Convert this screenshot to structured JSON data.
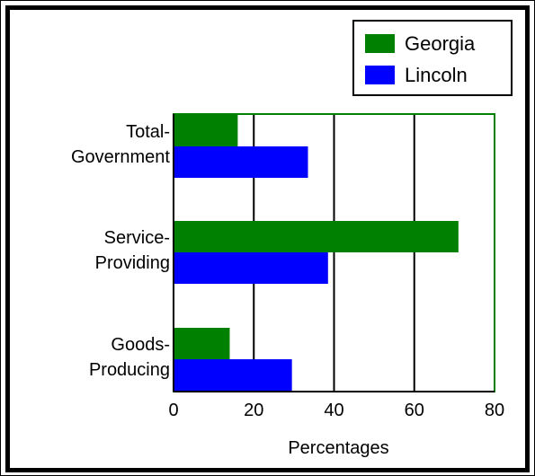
{
  "chart_data": {
    "type": "bar",
    "orientation": "horizontal",
    "categories": [
      [
        "Total-",
        "Government"
      ],
      [
        "Service-",
        "Providing"
      ],
      [
        "Goods-",
        "Producing"
      ]
    ],
    "series": [
      {
        "name": "Georgia",
        "color": "#008000",
        "values": [
          16,
          71,
          14
        ]
      },
      {
        "name": "Lincoln",
        "color": "#0000ff",
        "values": [
          33.5,
          38.5,
          29.5
        ]
      }
    ],
    "xlabel": "Percentages",
    "ylabel": "",
    "title": "",
    "xlim": [
      0,
      80
    ],
    "xticks": [
      0,
      20,
      40,
      60,
      80
    ],
    "grid": "vertical",
    "legend_position": "top-right"
  }
}
